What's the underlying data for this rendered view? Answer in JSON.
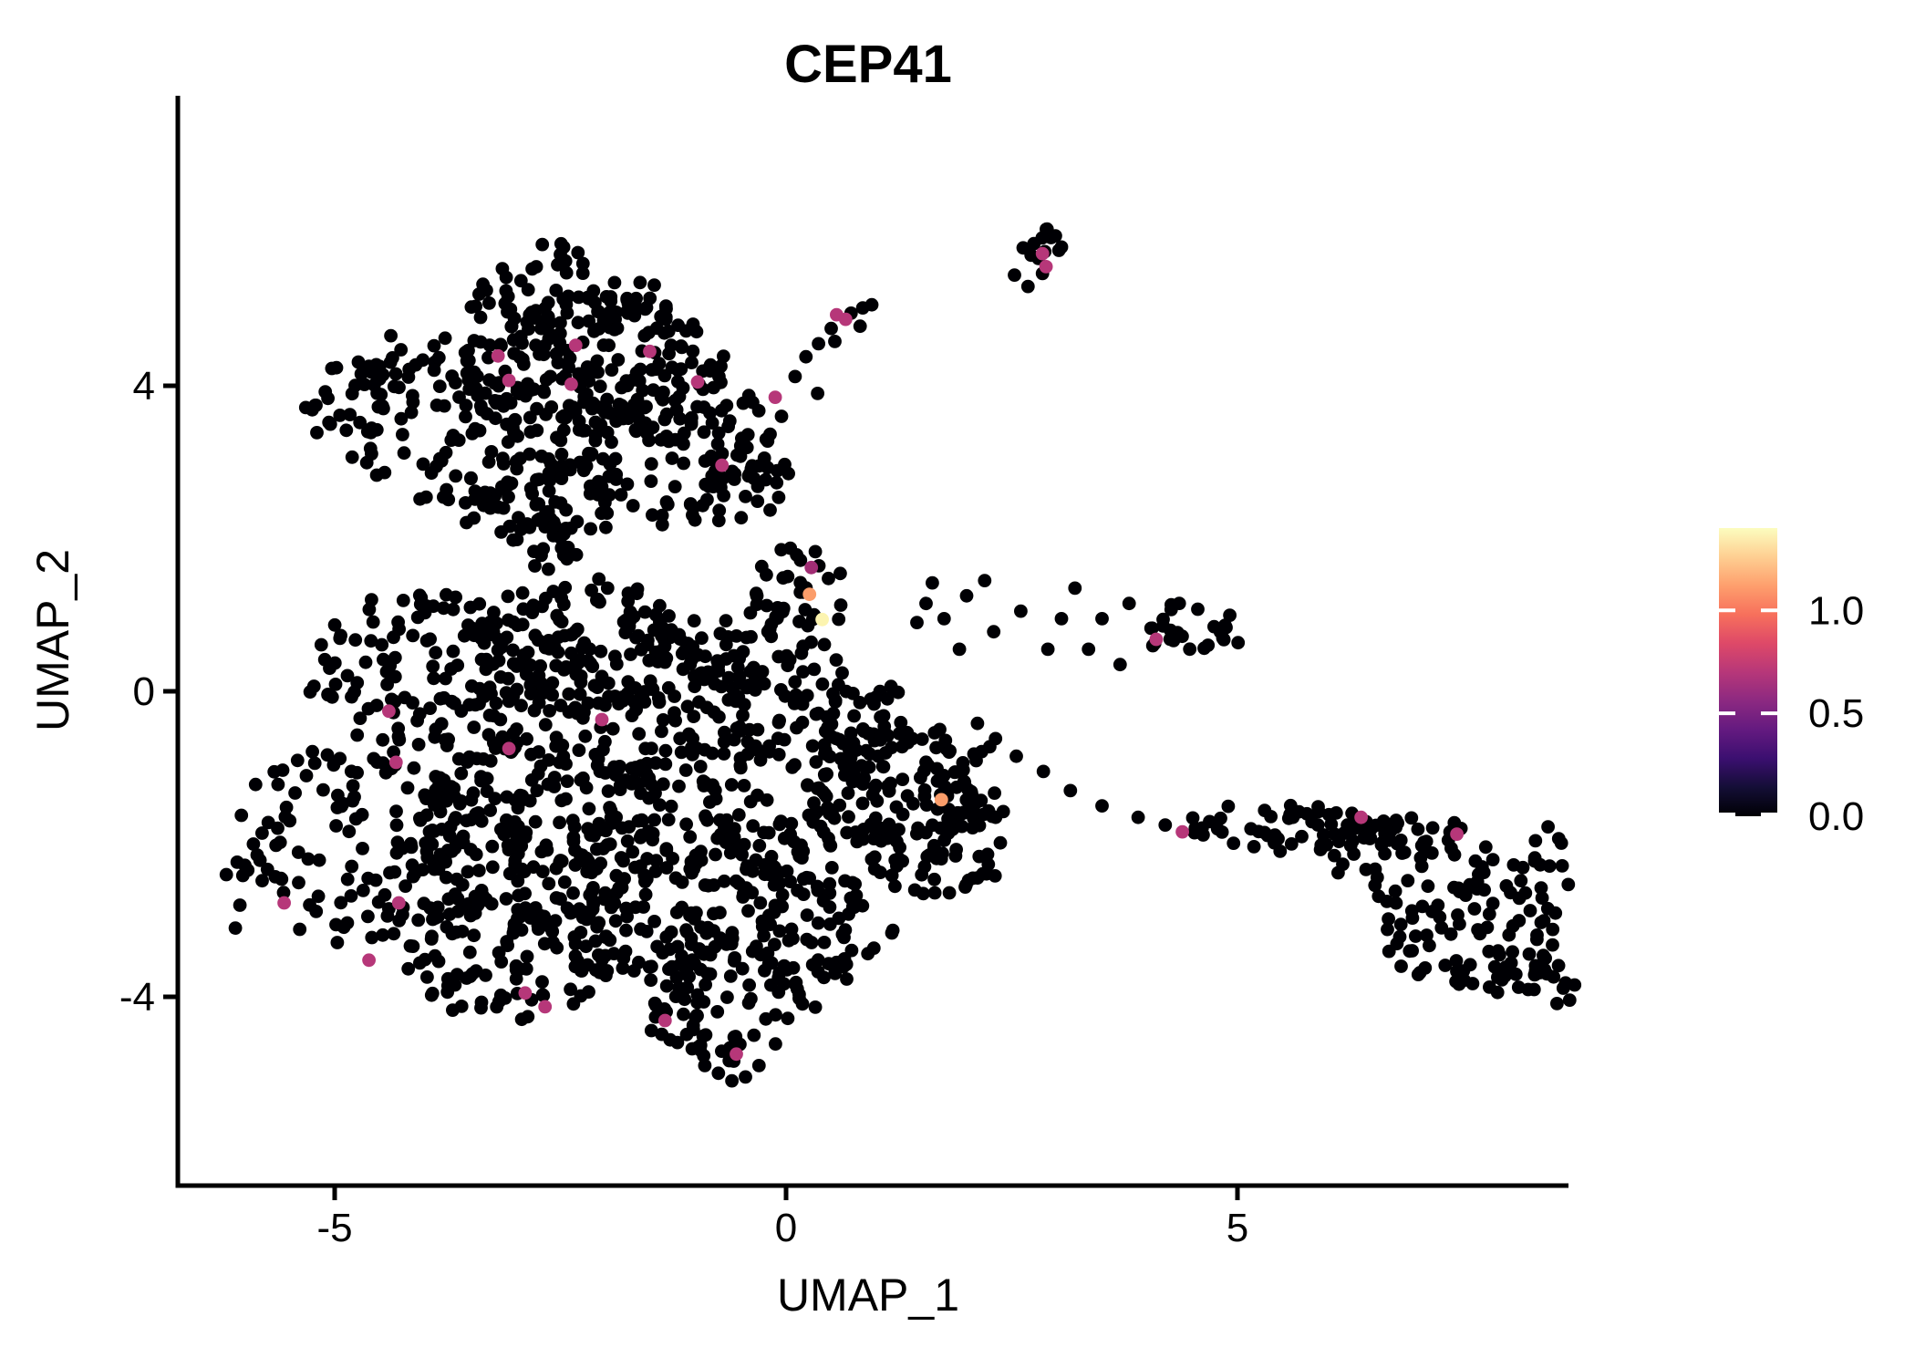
{
  "title": "CEP41",
  "axes": {
    "x_label": "UMAP_1",
    "y_label": "UMAP_2",
    "x_ticks": [
      {
        "label": "-5",
        "value": -5
      },
      {
        "label": "0",
        "value": 0
      },
      {
        "label": "5",
        "value": 5
      }
    ],
    "y_ticks": [
      {
        "label": "4",
        "value": 4
      },
      {
        "label": "0",
        "value": 0
      },
      {
        "label": "-4",
        "value": -4
      }
    ]
  },
  "colorbar": {
    "domain_max": 1.4,
    "ticks": [
      {
        "label": "1.0",
        "value": 1.0
      },
      {
        "label": "0.5",
        "value": 0.5
      },
      {
        "label": "0.0",
        "value": 0.0
      }
    ],
    "gradient": [
      "#000004",
      "#140e36",
      "#3b0f70",
      "#641a80",
      "#8c2981",
      "#b73779",
      "#de4968",
      "#f7705c",
      "#fe9f6d",
      "#fecf92",
      "#fcfdbf"
    ]
  },
  "chart_data": {
    "type": "scatter",
    "title": "CEP41",
    "xlabel": "UMAP_1",
    "ylabel": "UMAP_2",
    "xlim": [
      -6.7,
      8.8
    ],
    "ylim": [
      -6.5,
      7.8
    ],
    "grid": false,
    "legend_position": "right-colorbar",
    "point_color_zero": "#000004",
    "black_clusters": [
      {
        "name": "upper-blob-left",
        "cx": -3.6,
        "cy": 3.6,
        "rx": 1.7,
        "ry": 1.15,
        "n": 170
      },
      {
        "name": "upper-blob-top",
        "cx": -2.1,
        "cy": 4.25,
        "rx": 1.5,
        "ry": 0.95,
        "n": 150
      },
      {
        "name": "upper-blob-right",
        "cx": -1.3,
        "cy": 3.25,
        "rx": 1.15,
        "ry": 1.05,
        "n": 110
      },
      {
        "name": "upper-blob-bottom",
        "cx": -2.8,
        "cy": 2.55,
        "rx": 1.05,
        "ry": 0.6,
        "n": 55
      },
      {
        "name": "upper-blob-fringe",
        "cx": -2.4,
        "cy": 5.1,
        "rx": 1.25,
        "ry": 0.4,
        "n": 45
      },
      {
        "name": "upper-blob-se",
        "cx": -0.45,
        "cy": 2.8,
        "rx": 0.55,
        "ry": 0.6,
        "n": 30
      },
      {
        "name": "blob-connector",
        "cx": -2.6,
        "cy": 1.95,
        "rx": 0.55,
        "ry": 0.35,
        "n": 20
      },
      {
        "name": "upper-top-fringe",
        "cx": -2.6,
        "cy": 5.6,
        "rx": 0.55,
        "ry": 0.3,
        "n": 10
      },
      {
        "name": "main-blob-nw",
        "cx": -3.7,
        "cy": 0.25,
        "rx": 1.6,
        "ry": 1.15,
        "n": 160
      },
      {
        "name": "main-blob-n",
        "cx": -2.2,
        "cy": 0.55,
        "rx": 1.3,
        "ry": 0.9,
        "n": 125
      },
      {
        "name": "main-blob-w",
        "cx": -4.5,
        "cy": -2.0,
        "rx": 1.65,
        "ry": 1.4,
        "n": 170
      },
      {
        "name": "main-blob-center",
        "cx": -2.7,
        "cy": -1.8,
        "rx": 1.4,
        "ry": 1.3,
        "n": 170
      },
      {
        "name": "main-blob-nc",
        "cx": -1.25,
        "cy": -0.35,
        "rx": 1.0,
        "ry": 1.0,
        "n": 100
      },
      {
        "name": "main-blob-sc",
        "cx": -1.3,
        "cy": -2.6,
        "rx": 1.3,
        "ry": 1.15,
        "n": 150
      },
      {
        "name": "main-blob-sw",
        "cx": -3.0,
        "cy": -3.5,
        "rx": 1.25,
        "ry": 0.85,
        "n": 100
      },
      {
        "name": "main-blob-s-tip",
        "cx": -0.65,
        "cy": -4.0,
        "rx": 0.95,
        "ry": 0.85,
        "n": 90
      },
      {
        "name": "main-blob-e",
        "cx": 0.1,
        "cy": -1.6,
        "rx": 1.0,
        "ry": 1.25,
        "n": 110
      },
      {
        "name": "main-blob-ne",
        "cx": -0.1,
        "cy": 0.3,
        "rx": 0.9,
        "ry": 0.85,
        "n": 80
      },
      {
        "name": "main-blob-se",
        "cx": 0.45,
        "cy": -3.1,
        "rx": 0.7,
        "ry": 0.65,
        "n": 50
      },
      {
        "name": "center-high-expr-area",
        "cx": 0.15,
        "cy": 1.35,
        "rx": 0.5,
        "ry": 0.55,
        "n": 25
      },
      {
        "name": "right-lobe-main",
        "cx": 1.2,
        "cy": -1.35,
        "rx": 0.95,
        "ry": 1.0,
        "n": 90
      },
      {
        "name": "right-lobe-s",
        "cx": 1.75,
        "cy": -2.0,
        "rx": 0.8,
        "ry": 0.75,
        "n": 60
      },
      {
        "name": "right-lobe-n",
        "cx": 1.05,
        "cy": -0.4,
        "rx": 0.6,
        "ry": 0.5,
        "n": 35
      },
      {
        "name": "right-lobe-edge",
        "cx": 2.0,
        "cy": -1.2,
        "rx": 0.4,
        "ry": 0.6,
        "n": 20
      },
      {
        "name": "top-small-cluster",
        "cx": 2.85,
        "cy": 5.75,
        "rx": 0.3,
        "ry": 0.33,
        "n": 13
      },
      {
        "name": "mid-right-cluster",
        "cx": 4.45,
        "cy": 0.8,
        "rx": 0.6,
        "ry": 0.45,
        "n": 26
      },
      {
        "name": "far-right-band",
        "cx": 5.6,
        "cy": -1.78,
        "rx": 1.15,
        "ry": 0.3,
        "n": 50
      },
      {
        "name": "far-right-mid",
        "cx": 6.9,
        "cy": -2.2,
        "rx": 1.05,
        "ry": 0.55,
        "n": 65
      },
      {
        "name": "far-right-lower",
        "cx": 7.6,
        "cy": -3.15,
        "rx": 1.05,
        "ry": 0.7,
        "n": 70
      },
      {
        "name": "far-right-tip",
        "cx": 8.3,
        "cy": -3.85,
        "rx": 0.5,
        "ry": 0.45,
        "n": 22
      },
      {
        "name": "far-right-ne",
        "cx": 8.35,
        "cy": -2.3,
        "rx": 0.4,
        "ry": 0.55,
        "n": 18
      }
    ],
    "black_singles": [
      [
        -0.45,
        2.55
      ],
      [
        -0.3,
        2.95
      ],
      [
        -0.22,
        3.3
      ],
      [
        -0.05,
        3.6
      ],
      [
        0.1,
        4.12
      ],
      [
        0.22,
        4.38
      ],
      [
        0.36,
        4.55
      ],
      [
        0.5,
        4.75
      ],
      [
        0.54,
        4.58
      ],
      [
        0.72,
        4.95
      ],
      [
        0.85,
        5.02
      ],
      [
        0.95,
        5.06
      ],
      [
        0.35,
        3.9
      ],
      [
        0.82,
        4.78
      ],
      [
        2.53,
        5.45
      ],
      [
        2.68,
        5.3
      ],
      [
        1.55,
        1.15
      ],
      [
        1.75,
        0.95
      ],
      [
        2.0,
        1.25
      ],
      [
        2.3,
        0.78
      ],
      [
        2.6,
        1.05
      ],
      [
        2.9,
        0.55
      ],
      [
        3.2,
        1.35
      ],
      [
        3.5,
        0.95
      ],
      [
        3.05,
        0.95
      ],
      [
        2.2,
        1.45
      ],
      [
        1.92,
        0.55
      ],
      [
        3.35,
        0.55
      ],
      [
        3.8,
        1.15
      ],
      [
        3.7,
        0.35
      ],
      [
        1.62,
        1.42
      ],
      [
        1.45,
        0.9
      ],
      [
        2.55,
        -0.85
      ],
      [
        2.85,
        -1.05
      ],
      [
        3.15,
        -1.3
      ],
      [
        3.5,
        -1.5
      ],
      [
        3.9,
        -1.65
      ],
      [
        4.2,
        -1.75
      ],
      [
        4.62,
        -1.88
      ],
      [
        4.78,
        -1.8
      ],
      [
        2.32,
        -0.62
      ],
      [
        2.12,
        -0.42
      ],
      [
        5.15,
        -1.8
      ],
      [
        5.3,
        -1.85
      ],
      [
        -2.7,
        5.85
      ],
      [
        -2.5,
        5.72
      ],
      [
        -2.25,
        5.6
      ],
      [
        -3.1,
        5.42
      ],
      [
        -1.9,
        5.35
      ],
      [
        -3.4,
        5.2
      ],
      [
        -6.2,
        -2.4
      ],
      [
        -6.05,
        -2.8
      ],
      [
        -5.9,
        -2.0
      ],
      [
        -6.1,
        -3.1
      ],
      [
        -0.75,
        -5.0
      ],
      [
        -0.6,
        -5.1
      ],
      [
        -0.45,
        -5.05
      ],
      [
        -0.9,
        -4.9
      ],
      [
        -0.3,
        -4.9
      ]
    ],
    "expressing_cells": [
      {
        "x": -3.19,
        "y": 4.39,
        "value": 0.7,
        "color": "#b63779"
      },
      {
        "x": -3.07,
        "y": 4.07,
        "value": 0.7,
        "color": "#b63779"
      },
      {
        "x": -2.33,
        "y": 4.53,
        "value": 0.7,
        "color": "#b63779"
      },
      {
        "x": -2.38,
        "y": 4.02,
        "value": 0.7,
        "color": "#b63779"
      },
      {
        "x": -1.51,
        "y": 4.45,
        "value": 0.7,
        "color": "#b63779"
      },
      {
        "x": -0.98,
        "y": 4.05,
        "value": 0.7,
        "color": "#b63779"
      },
      {
        "x": -0.71,
        "y": 2.96,
        "value": 0.7,
        "color": "#b63779"
      },
      {
        "x": -0.12,
        "y": 3.85,
        "value": 0.7,
        "color": "#b63779"
      },
      {
        "x": 0.56,
        "y": 4.93,
        "value": 0.7,
        "color": "#b63779"
      },
      {
        "x": 0.66,
        "y": 4.87,
        "value": 0.7,
        "color": "#b63779"
      },
      {
        "x": 2.84,
        "y": 5.73,
        "value": 0.7,
        "color": "#b63779"
      },
      {
        "x": 2.88,
        "y": 5.56,
        "value": 0.7,
        "color": "#b63779"
      },
      {
        "x": 0.28,
        "y": 1.62,
        "value": 0.62,
        "color": "#a12d74"
      },
      {
        "x": -4.4,
        "y": -0.26,
        "value": 0.7,
        "color": "#b63779"
      },
      {
        "x": -4.32,
        "y": -0.93,
        "value": 0.7,
        "color": "#b63779"
      },
      {
        "x": -3.07,
        "y": -0.75,
        "value": 0.7,
        "color": "#b63779"
      },
      {
        "x": -2.04,
        "y": -0.37,
        "value": 0.7,
        "color": "#b63779"
      },
      {
        "x": -5.56,
        "y": -2.77,
        "value": 0.7,
        "color": "#b63779"
      },
      {
        "x": -4.29,
        "y": -2.77,
        "value": 0.7,
        "color": "#b63779"
      },
      {
        "x": -4.62,
        "y": -3.52,
        "value": 0.7,
        "color": "#b63779"
      },
      {
        "x": -2.89,
        "y": -3.95,
        "value": 0.7,
        "color": "#b63779"
      },
      {
        "x": -2.67,
        "y": -4.13,
        "value": 0.7,
        "color": "#b63779"
      },
      {
        "x": -1.34,
        "y": -4.31,
        "value": 0.7,
        "color": "#b63779"
      },
      {
        "x": -0.55,
        "y": -4.75,
        "value": 0.7,
        "color": "#b63779"
      },
      {
        "x": 4.1,
        "y": 0.68,
        "value": 0.7,
        "color": "#b63779"
      },
      {
        "x": 4.39,
        "y": -1.84,
        "value": 0.7,
        "color": "#b63779"
      },
      {
        "x": 6.37,
        "y": -1.65,
        "value": 0.7,
        "color": "#b63779"
      },
      {
        "x": 7.43,
        "y": -1.87,
        "value": 0.7,
        "color": "#b63779"
      },
      {
        "x": 0.26,
        "y": 1.27,
        "value": 1.1,
        "color": "#fb9d6a"
      },
      {
        "x": 1.72,
        "y": -1.42,
        "value": 1.1,
        "color": "#fb9d6a"
      },
      {
        "x": 0.4,
        "y": 0.94,
        "value": 1.4,
        "color": "#fcf4b0"
      }
    ]
  }
}
